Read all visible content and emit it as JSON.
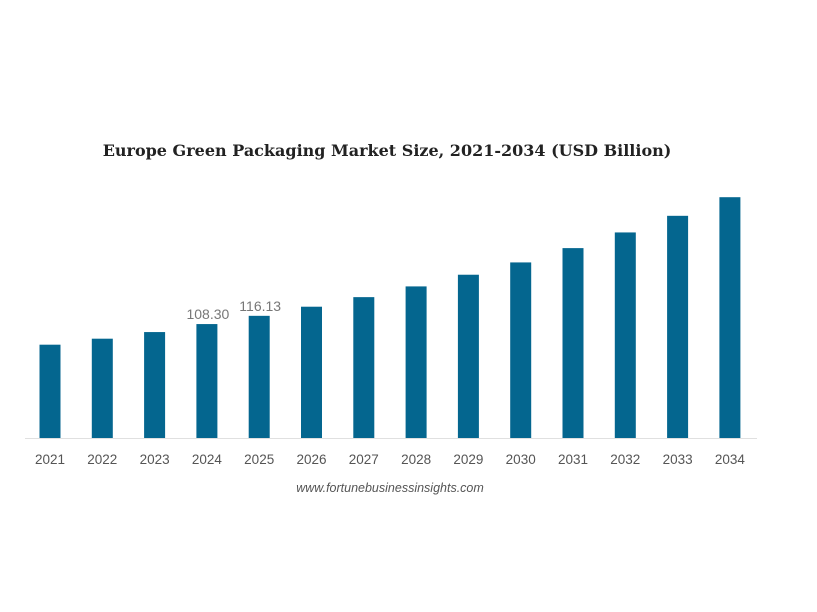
{
  "chart_data": {
    "type": "bar",
    "title": "Europe Green Packaging Market Size, 2021-2034 (USD Billion)",
    "xlabel": "",
    "ylabel": "",
    "categories": [
      "2021",
      "2022",
      "2023",
      "2024",
      "2025",
      "2026",
      "2027",
      "2028",
      "2029",
      "2030",
      "2031",
      "2032",
      "2033",
      "2034"
    ],
    "values": [
      88.7,
      94.4,
      100.7,
      108.3,
      116.13,
      124.8,
      133.9,
      144.1,
      155.2,
      166.9,
      180.5,
      195.4,
      211.2,
      228.9
    ],
    "data_labels": {
      "2024": "108.30",
      "2025": "116.13"
    },
    "ylim": [
      0,
      230
    ],
    "grid": false,
    "bar_color": "#04668F",
    "source": "www.fortunebusinessinsights.com"
  }
}
